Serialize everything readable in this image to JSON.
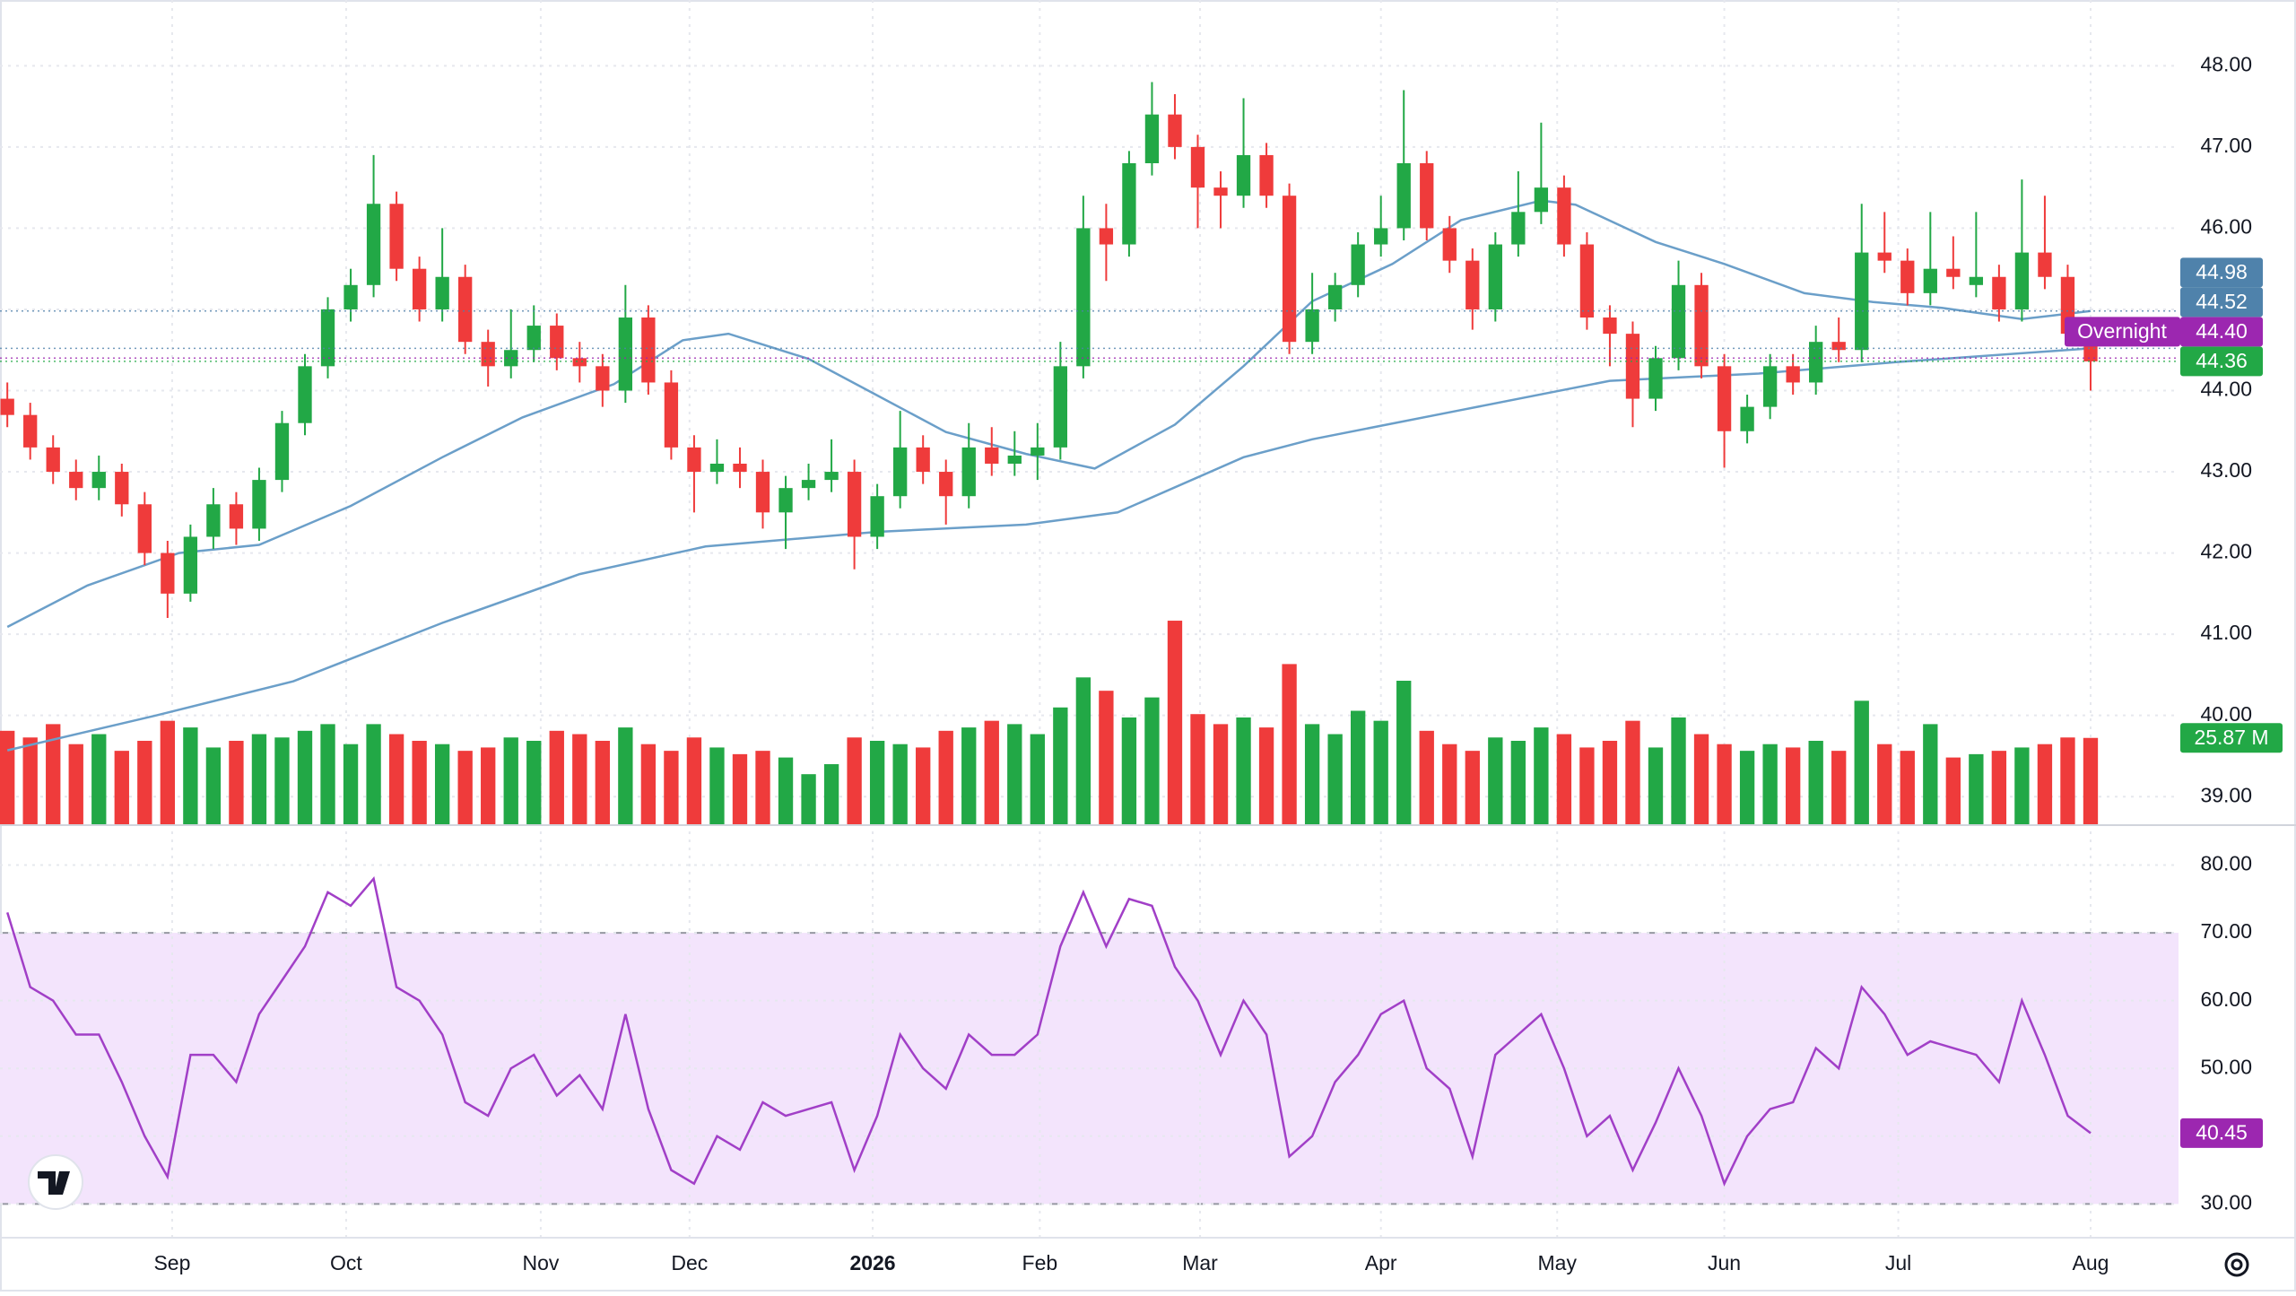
{
  "chart_data": {
    "type": "candlestick",
    "xlim": [
      -0.32,
      94.84
    ],
    "xticks": [
      {
        "value": 7.2,
        "label": "Sep"
      },
      {
        "value": 14.8,
        "label": "Oct"
      },
      {
        "value": 23.3,
        "label": "Nov"
      },
      {
        "value": 29.8,
        "label": "Dec"
      },
      {
        "value": 37.8,
        "label": "2026"
      },
      {
        "value": 45.1,
        "label": "Feb"
      },
      {
        "value": 52.1,
        "label": "Mar"
      },
      {
        "value": 60.0,
        "label": "Apr"
      },
      {
        "value": 67.7,
        "label": "May"
      },
      {
        "value": 75.0,
        "label": "Jun"
      },
      {
        "value": 82.6,
        "label": "Jul"
      },
      {
        "value": 91.0,
        "label": "Aug"
      }
    ],
    "ylim": [
      38.66,
      48.81
    ],
    "yticks": [
      {
        "value": 39,
        "label": "39.00"
      },
      {
        "value": 40,
        "label": "40.00"
      },
      {
        "value": 41,
        "label": "41.00"
      },
      {
        "value": 42,
        "label": "42.00"
      },
      {
        "value": 43,
        "label": "43.00"
      },
      {
        "value": 44,
        "label": "44.00"
      },
      {
        "value": 45,
        "label": "45.00"
      },
      {
        "value": 46,
        "label": "46.00"
      },
      {
        "value": 47,
        "label": "47.00"
      },
      {
        "value": 48,
        "label": "48.00"
      }
    ],
    "up_color": "#22a846",
    "down_color": "#ef3b3b",
    "candles": [
      [
        43.9,
        44.1,
        43.55,
        43.7
      ],
      [
        43.7,
        43.85,
        43.15,
        43.3
      ],
      [
        43.3,
        43.45,
        42.85,
        43.0
      ],
      [
        43.0,
        43.15,
        42.65,
        42.8
      ],
      [
        42.8,
        43.2,
        42.65,
        43.0
      ],
      [
        43.0,
        43.1,
        42.45,
        42.6
      ],
      [
        42.6,
        42.75,
        41.85,
        42.0
      ],
      [
        42.0,
        42.15,
        41.2,
        41.5
      ],
      [
        41.5,
        42.35,
        41.4,
        42.2
      ],
      [
        42.2,
        42.8,
        42.05,
        42.6
      ],
      [
        42.6,
        42.75,
        42.1,
        42.3
      ],
      [
        42.3,
        43.05,
        42.15,
        42.9
      ],
      [
        42.9,
        43.75,
        42.75,
        43.6
      ],
      [
        43.6,
        44.45,
        43.45,
        44.3
      ],
      [
        44.3,
        45.15,
        44.15,
        45.0
      ],
      [
        45.0,
        45.5,
        44.85,
        45.3
      ],
      [
        45.3,
        46.9,
        45.15,
        46.3
      ],
      [
        46.3,
        46.45,
        45.35,
        45.5
      ],
      [
        45.5,
        45.65,
        44.85,
        45.0
      ],
      [
        45.0,
        46.0,
        44.85,
        45.4
      ],
      [
        45.4,
        45.55,
        44.45,
        44.6
      ],
      [
        44.6,
        44.75,
        44.05,
        44.3
      ],
      [
        44.3,
        45.0,
        44.15,
        44.5
      ],
      [
        44.5,
        45.05,
        44.35,
        44.8
      ],
      [
        44.8,
        44.95,
        44.25,
        44.4
      ],
      [
        44.4,
        44.6,
        44.1,
        44.3
      ],
      [
        44.3,
        44.45,
        43.8,
        44.0
      ],
      [
        44.0,
        45.3,
        43.85,
        44.9
      ],
      [
        44.9,
        45.05,
        43.95,
        44.1
      ],
      [
        44.1,
        44.25,
        43.15,
        43.3
      ],
      [
        43.3,
        43.45,
        42.5,
        43.0
      ],
      [
        43.0,
        43.4,
        42.85,
        43.1
      ],
      [
        43.1,
        43.3,
        42.8,
        43.0
      ],
      [
        43.0,
        43.15,
        42.3,
        42.5
      ],
      [
        42.5,
        42.95,
        42.05,
        42.8
      ],
      [
        42.8,
        43.1,
        42.65,
        42.9
      ],
      [
        42.9,
        43.4,
        42.75,
        43.0
      ],
      [
        43.0,
        43.15,
        41.8,
        42.2
      ],
      [
        42.2,
        42.85,
        42.05,
        42.7
      ],
      [
        42.7,
        43.75,
        42.55,
        43.3
      ],
      [
        43.3,
        43.45,
        42.85,
        43.0
      ],
      [
        43.0,
        43.15,
        42.35,
        42.7
      ],
      [
        42.7,
        43.6,
        42.55,
        43.3
      ],
      [
        43.3,
        43.55,
        42.95,
        43.1
      ],
      [
        43.1,
        43.5,
        42.95,
        43.2
      ],
      [
        43.2,
        43.6,
        42.9,
        43.3
      ],
      [
        43.3,
        44.6,
        43.15,
        44.3
      ],
      [
        44.3,
        46.4,
        44.15,
        46.0
      ],
      [
        46.0,
        46.3,
        45.35,
        45.8
      ],
      [
        45.8,
        46.95,
        45.65,
        46.8
      ],
      [
        46.8,
        47.8,
        46.65,
        47.4
      ],
      [
        47.4,
        47.65,
        46.85,
        47.0
      ],
      [
        47.0,
        47.15,
        46.0,
        46.5
      ],
      [
        46.5,
        46.7,
        46.0,
        46.4
      ],
      [
        46.4,
        47.6,
        46.25,
        46.9
      ],
      [
        46.9,
        47.05,
        46.25,
        46.4
      ],
      [
        46.4,
        46.55,
        44.45,
        44.6
      ],
      [
        44.6,
        45.45,
        44.45,
        45.0
      ],
      [
        45.0,
        45.45,
        44.85,
        45.3
      ],
      [
        45.3,
        45.95,
        45.15,
        45.8
      ],
      [
        45.8,
        46.4,
        45.65,
        46.0
      ],
      [
        46.0,
        47.7,
        45.85,
        46.8
      ],
      [
        46.8,
        46.95,
        45.85,
        46.0
      ],
      [
        46.0,
        46.15,
        45.45,
        45.6
      ],
      [
        45.6,
        45.75,
        44.75,
        45.0
      ],
      [
        45.0,
        45.95,
        44.85,
        45.8
      ],
      [
        45.8,
        46.7,
        45.65,
        46.2
      ],
      [
        46.2,
        47.3,
        46.05,
        46.5
      ],
      [
        46.5,
        46.65,
        45.65,
        45.8
      ],
      [
        45.8,
        45.95,
        44.75,
        44.9
      ],
      [
        44.9,
        45.05,
        44.3,
        44.7
      ],
      [
        44.7,
        44.85,
        43.55,
        43.9
      ],
      [
        43.9,
        44.55,
        43.75,
        44.4
      ],
      [
        44.4,
        45.6,
        44.25,
        45.3
      ],
      [
        45.3,
        45.45,
        44.15,
        44.3
      ],
      [
        44.3,
        44.45,
        43.05,
        43.5
      ],
      [
        43.5,
        43.95,
        43.35,
        43.8
      ],
      [
        43.8,
        44.45,
        43.65,
        44.3
      ],
      [
        44.3,
        44.45,
        43.95,
        44.1
      ],
      [
        44.1,
        44.8,
        43.95,
        44.6
      ],
      [
        44.6,
        44.9,
        44.35,
        44.5
      ],
      [
        44.5,
        46.3,
        44.35,
        45.7
      ],
      [
        45.7,
        46.2,
        45.45,
        45.6
      ],
      [
        45.6,
        45.75,
        45.05,
        45.2
      ],
      [
        45.2,
        46.2,
        45.05,
        45.5
      ],
      [
        45.5,
        45.9,
        45.25,
        45.4
      ],
      [
        45.3,
        46.2,
        45.15,
        45.4
      ],
      [
        45.4,
        45.55,
        44.85,
        45.0
      ],
      [
        45.0,
        46.6,
        44.85,
        45.7
      ],
      [
        45.7,
        46.4,
        45.25,
        45.4
      ],
      [
        45.4,
        45.55,
        44.55,
        44.7
      ],
      [
        44.7,
        44.85,
        44.0,
        44.36
      ]
    ],
    "volume": [
      28,
      26,
      30,
      24,
      27,
      22,
      25,
      31,
      29,
      23,
      25,
      27,
      26,
      28,
      30,
      24,
      30,
      27,
      25,
      24,
      22,
      23,
      26,
      25,
      28,
      27,
      25,
      29,
      24,
      22,
      26,
      23,
      21,
      22,
      20,
      15,
      18,
      26,
      25,
      24,
      23,
      28,
      29,
      31,
      30,
      27,
      35,
      44,
      40,
      32,
      38,
      61,
      33,
      30,
      32,
      29,
      48,
      30,
      27,
      34,
      31,
      43,
      28,
      24,
      22,
      26,
      25,
      29,
      27,
      23,
      25,
      31,
      23,
      32,
      27,
      24,
      22,
      24,
      23,
      25,
      22,
      37,
      24,
      22,
      30,
      20,
      21,
      22,
      23,
      24,
      26,
      25.87
    ],
    "volume_ylim": [
      0,
      247
    ],
    "volume_label": {
      "value": 25.87,
      "label": "25.87 M"
    },
    "moving_averages": [
      {
        "color": "#6b9fc9",
        "x": [
          0,
          3.5,
          7.5,
          11,
          15,
          19,
          22.5,
          26.5,
          29.5,
          31.5,
          35,
          38,
          41,
          44.5,
          47.5,
          51,
          54,
          57,
          60.5,
          63.5,
          67,
          68.5,
          72,
          75,
          78.5,
          81.5,
          84.5,
          88,
          91
        ],
        "values": [
          41.09,
          41.6,
          42.0,
          42.1,
          42.58,
          43.18,
          43.67,
          44.08,
          44.62,
          44.7,
          44.39,
          43.94,
          43.49,
          43.22,
          43.04,
          43.58,
          44.3,
          45.1,
          45.56,
          46.1,
          46.34,
          46.29,
          45.83,
          45.56,
          45.2,
          45.09,
          45.02,
          44.88,
          44.98
        ]
      },
      {
        "color": "#6b9fc9",
        "x": [
          0,
          6.5,
          12.5,
          19,
          25,
          30.5,
          38,
          44.5,
          48.5,
          54,
          57,
          63.5,
          70,
          76.5,
          82.5,
          91
        ],
        "values": [
          39.57,
          40.0,
          40.42,
          41.14,
          41.74,
          42.08,
          42.26,
          42.35,
          42.5,
          43.18,
          43.4,
          43.76,
          44.12,
          44.21,
          44.35,
          44.52
        ]
      }
    ],
    "price_labels": [
      {
        "value": 44.36,
        "label": "44.36",
        "color": "#22a846"
      },
      {
        "value": 44.4,
        "label": "44.40",
        "color": "#9c27b0",
        "tag": "Overnight"
      },
      {
        "value": 44.52,
        "label": "44.52",
        "color": "#4f82ab"
      },
      {
        "value": 44.98,
        "label": "44.98",
        "color": "#4f82ab"
      }
    ],
    "rsi": {
      "color": "#a13fc7",
      "band_color": "#f3e4fc",
      "ylim": [
        25.02,
        85.63
      ],
      "yticks": [
        {
          "value": 30,
          "label": "30.00"
        },
        {
          "value": 40,
          "label": "40.00"
        },
        {
          "value": 50,
          "label": "50.00"
        },
        {
          "value": 60,
          "label": "60.00"
        },
        {
          "value": 70,
          "label": "70.00"
        },
        {
          "value": 80,
          "label": "80.00"
        }
      ],
      "band": [
        30,
        70
      ],
      "values": [
        73,
        62,
        60,
        55,
        55,
        48,
        40,
        34,
        52,
        52,
        48,
        58,
        63,
        68,
        76,
        74,
        78,
        62,
        60,
        55,
        45,
        43,
        50,
        52,
        46,
        49,
        44,
        58,
        44,
        35,
        33,
        40,
        38,
        45,
        43,
        44,
        45,
        35,
        43,
        55,
        50,
        47,
        55,
        52,
        52,
        55,
        68,
        76,
        68,
        75,
        74,
        65,
        60,
        52,
        60,
        55,
        37,
        40,
        48,
        52,
        58,
        60,
        50,
        47,
        37,
        52,
        55,
        58,
        50,
        40,
        43,
        35,
        42,
        50,
        43,
        33,
        40,
        44,
        45,
        53,
        50,
        62,
        58,
        52,
        54,
        53,
        52,
        48,
        60,
        52,
        43,
        40.45
      ],
      "last_label": {
        "value": 40.45,
        "label": "40.45"
      }
    }
  }
}
